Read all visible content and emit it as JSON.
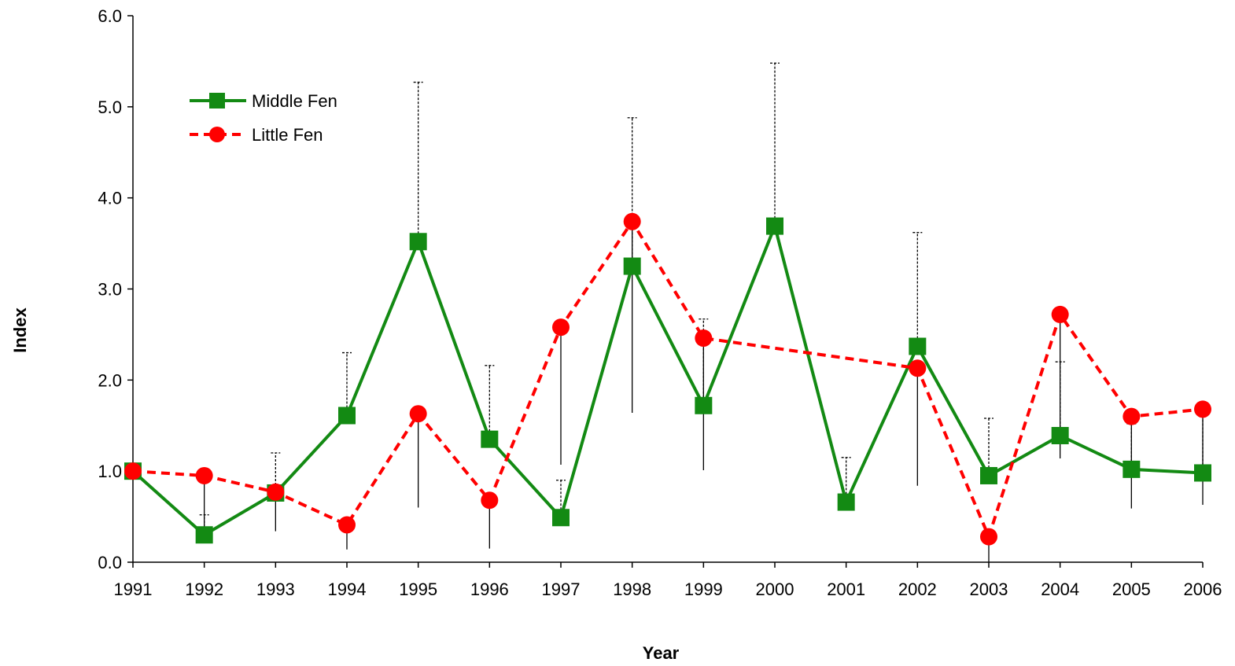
{
  "chart_data": {
    "type": "line",
    "x_label": "Year",
    "y_label": "Index",
    "categories": [
      "1991",
      "1992",
      "1993",
      "1994",
      "1995",
      "1996",
      "1997",
      "1998",
      "1999",
      "2000",
      "2001",
      "2002",
      "2003",
      "2004",
      "2005",
      "2006"
    ],
    "ylim": [
      0,
      6
    ],
    "yticks": [
      {
        "value": 0,
        "label": "0.0"
      },
      {
        "value": 1,
        "label": "1.0"
      },
      {
        "value": 2,
        "label": "2.0"
      },
      {
        "value": 3,
        "label": "3.0"
      },
      {
        "value": 4,
        "label": "4.0"
      },
      {
        "value": 5,
        "label": "5.0"
      },
      {
        "value": 6,
        "label": "6.0"
      }
    ],
    "grid": false,
    "legend": "upper left",
    "span_gaps": true,
    "series": [
      {
        "name": "Middle Fen",
        "color": "#138a13",
        "marker": "square",
        "dash": false,
        "values": [
          1.0,
          0.3,
          0.76,
          1.61,
          3.52,
          1.35,
          0.49,
          3.25,
          1.72,
          3.69,
          0.66,
          2.37,
          0.95,
          1.39,
          1.02,
          0.98
        ],
        "error_high": [
          null,
          0.52,
          1.2,
          2.3,
          5.27,
          2.16,
          0.9,
          4.88,
          2.67,
          5.48,
          1.15,
          3.62,
          1.58,
          2.2,
          1.52,
          1.62
        ]
      },
      {
        "name": "Little Fen",
        "color": "#ff0000",
        "marker": "circle",
        "dash": true,
        "values": [
          1.0,
          0.95,
          0.77,
          0.41,
          1.63,
          0.68,
          2.58,
          3.74,
          2.46,
          null,
          null,
          2.13,
          0.28,
          2.72,
          1.6,
          1.68
        ],
        "error_low": [
          null,
          0.4,
          0.34,
          0.14,
          0.6,
          0.15,
          1.07,
          1.64,
          1.01,
          null,
          null,
          0.84,
          0.0,
          1.14,
          0.59,
          0.63
        ]
      }
    ]
  }
}
